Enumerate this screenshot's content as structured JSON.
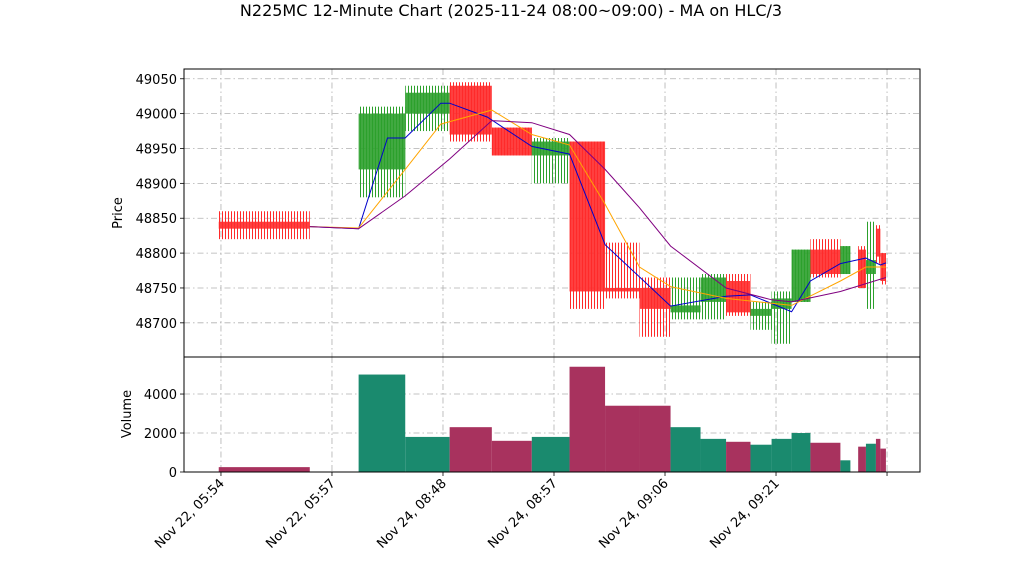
{
  "chart_data": [
    {
      "type": "candlestick",
      "title": "N225MC 12-Minute Chart (2025-11-24 08:00~09:00) - MA on HLC/3",
      "ylabel": "Price",
      "x_start": [
        -0.02,
        1.24,
        1.66,
        2.06,
        2.44,
        2.8,
        3.14,
        3.46,
        3.77,
        4.05,
        4.32,
        4.55,
        4.77,
        4.96,
        5.14,
        5.31,
        5.58,
        5.74,
        5.81,
        5.9,
        5.94
      ],
      "x_end": [
        0.8,
        1.66,
        2.06,
        2.44,
        2.8,
        3.14,
        3.46,
        3.77,
        4.05,
        4.32,
        4.55,
        4.77,
        4.96,
        5.14,
        5.31,
        5.58,
        5.67,
        5.81,
        5.9,
        5.94,
        5.99
      ],
      "open": [
        48845,
        48920,
        49000,
        49040,
        48980,
        48940,
        48960,
        48750,
        48750,
        48715,
        48730,
        48760,
        48710,
        48720,
        48730,
        48805,
        48770,
        48805,
        48770,
        48835,
        48800
      ],
      "high": [
        48860,
        49010,
        49040,
        49045,
        48980,
        48965,
        48960,
        48815,
        48765,
        48765,
        48770,
        48770,
        48730,
        48745,
        48805,
        48820,
        48810,
        48810,
        48845,
        48840,
        48800
      ],
      "low": [
        48820,
        48880,
        48975,
        48960,
        48940,
        48900,
        48720,
        48735,
        48680,
        48705,
        48705,
        48710,
        48690,
        48670,
        48730,
        48765,
        48770,
        48750,
        48720,
        48785,
        48755
      ],
      "close": [
        48835,
        49000,
        49030,
        48970,
        48940,
        48960,
        48745,
        48745,
        48720,
        48725,
        48765,
        48715,
        48720,
        48735,
        48805,
        48770,
        48810,
        48750,
        48790,
        48795,
        48760
      ],
      "up_color": "#2ca02c",
      "down_color": "#ff2a2a",
      "series": [
        {
          "color": "#0000cc",
          "x": [
            0.8,
            1.24,
            1.5,
            1.66,
            1.98,
            2.06,
            2.4,
            2.8,
            3.14,
            3.46,
            4.05,
            4.55,
            4.77,
            5.14,
            5.31,
            5.58,
            5.81,
            5.94,
            5.99
          ],
          "values": [
            48838,
            48835,
            48965,
            48965,
            49015,
            49015,
            48995,
            48953,
            48942,
            48812,
            48724,
            48738,
            48740,
            48716,
            48760,
            48785,
            48793,
            48783,
            48786
          ]
        },
        {
          "color": "#ffa500",
          "x": [
            0.8,
            1.24,
            1.66,
            1.98,
            2.44,
            2.8,
            3.14,
            3.46,
            3.77,
            4.05,
            4.55,
            5.14,
            5.58,
            5.81,
            5.99
          ],
          "values": [
            48838,
            48836,
            48920,
            48985,
            49005,
            48970,
            48955,
            48870,
            48780,
            48752,
            48735,
            48725,
            48760,
            48780,
            48780
          ]
        },
        {
          "color": "#800080",
          "x": [
            0.8,
            1.24,
            1.66,
            2.06,
            2.44,
            2.8,
            3.14,
            3.46,
            3.77,
            4.05,
            4.55,
            4.96,
            5.14,
            5.58,
            5.99
          ],
          "values": [
            48838,
            48835,
            48882,
            48935,
            48990,
            48987,
            48970,
            48920,
            48865,
            48810,
            48750,
            48733,
            48730,
            48745,
            48765
          ]
        }
      ],
      "xlim": [
        -0.333,
        6.297
      ],
      "ylim": [
        48651,
        49064
      ],
      "yticks": [
        48700,
        48750,
        48800,
        48850,
        48900,
        48950,
        49000,
        49050
      ],
      "grid": true
    },
    {
      "type": "bar",
      "ylabel": "Volume",
      "values": [
        250,
        5000,
        1800,
        2300,
        1600,
        1800,
        5400,
        3400,
        3400,
        2300,
        1700,
        1550,
        1400,
        1700,
        2000,
        1500,
        600,
        1300,
        1450,
        1700,
        1200
      ],
      "up_color": "#1a8a6e",
      "down_color": "#a8325e",
      "xlim": [
        -0.333,
        6.297
      ],
      "ylim": [
        0,
        5900
      ],
      "yticks": [
        0,
        2000,
        4000
      ],
      "xticks": [
        {
          "value": 0,
          "label": "Nov 22, 05:54"
        },
        {
          "value": 1,
          "label": "Nov 22, 05:57"
        },
        {
          "value": 2,
          "label": "Nov 24, 08:48"
        },
        {
          "value": 3,
          "label": "Nov 24, 08:57"
        },
        {
          "value": 4,
          "label": "Nov 24, 09:06"
        },
        {
          "value": 5,
          "label": "Nov 24, 09:21"
        },
        {
          "value": 6,
          "label": ""
        }
      ],
      "grid": true
    }
  ]
}
